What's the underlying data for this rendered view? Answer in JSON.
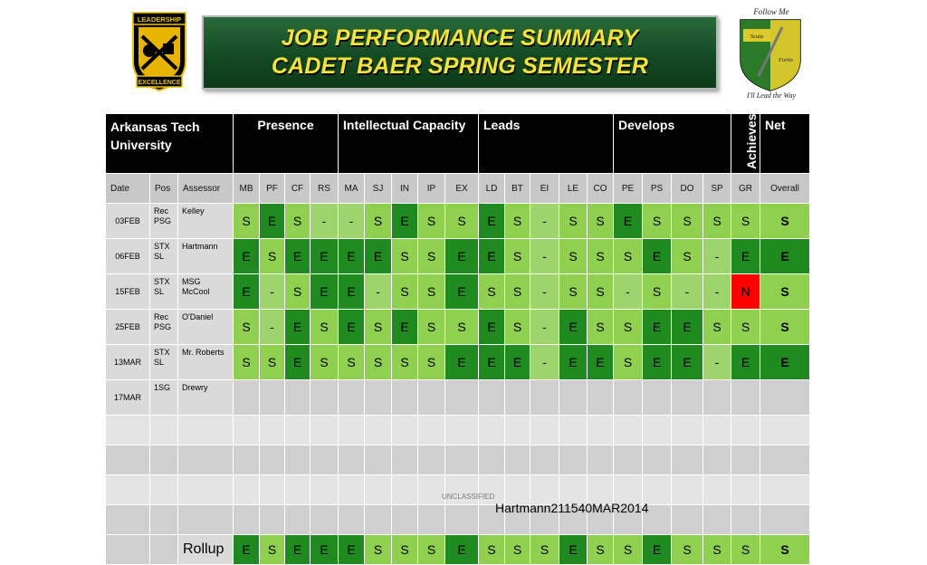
{
  "banner": {
    "line1": "JOB PERFORMANCE SUMMARY",
    "line2": "CADET BAER SPRING SEMESTER"
  },
  "logo_left": {
    "top": "LEADERSHIP",
    "bottom": "EXCELLENCE"
  },
  "logo_right": {
    "top": "Follow Me",
    "left": "Scuta",
    "right": "Fortis",
    "bottom": "I'll Lead the Way"
  },
  "header": {
    "university": "Arkansas Tech University",
    "presence": "Presence",
    "intellect": "Intellectual Capacity",
    "leads": "Leads",
    "develops": "Develops",
    "achieves": "Achieves",
    "net": "Net"
  },
  "columns": [
    "Date",
    "Pos",
    "Assessor",
    "MB",
    "PF",
    "CF",
    "RS",
    "MA",
    "SJ",
    "IN",
    "IP",
    "EX",
    "LD",
    "BT",
    "EI",
    "LE",
    "CO",
    "PE",
    "PS",
    "DO",
    "SP",
    "GR",
    "Overall"
  ],
  "rows": [
    {
      "date": "03FEB",
      "pos": "Rec PSG",
      "assessor": "Kelley",
      "grades": [
        "S",
        "E",
        "S",
        "-",
        "-",
        "S",
        "E",
        "S",
        "S",
        "E",
        "S",
        "-",
        "S",
        "S",
        "E",
        "S",
        "S",
        "S",
        "S"
      ],
      "net": "S"
    },
    {
      "date": "06FEB",
      "pos": "STX SL",
      "assessor": "Hartmann",
      "grades": [
        "E",
        "S",
        "E",
        "E",
        "E",
        "E",
        "S",
        "S",
        "E",
        "E",
        "S",
        "-",
        "S",
        "S",
        "S",
        "E",
        "S",
        "-",
        "E"
      ],
      "net": "E"
    },
    {
      "date": "15FEB",
      "pos": "STX SL",
      "assessor": "MSG McCool",
      "grades": [
        "E",
        "-",
        "S",
        "E",
        "E",
        "-",
        "S",
        "S",
        "E",
        "S",
        "S",
        "-",
        "S",
        "S",
        "-",
        "S",
        "-",
        "-",
        "N"
      ],
      "net": "S"
    },
    {
      "date": "25FEB",
      "pos": "Rec PSG",
      "assessor": "O'Daniel",
      "grades": [
        "S",
        "-",
        "E",
        "S",
        "E",
        "S",
        "E",
        "S",
        "S",
        "E",
        "S",
        "-",
        "E",
        "S",
        "S",
        "E",
        "E",
        "S",
        "S"
      ],
      "net": "S"
    },
    {
      "date": "13MAR",
      "pos": "STX SL",
      "assessor": "Mr. Roberts",
      "grades": [
        "S",
        "S",
        "E",
        "S",
        "S",
        "S",
        "S",
        "S",
        "E",
        "E",
        "E",
        "-",
        "E",
        "E",
        "S",
        "E",
        "E",
        "-",
        "E"
      ],
      "net": "E"
    },
    {
      "date": "17MAR",
      "pos": "1SG",
      "assessor": "Drewry",
      "grades": [],
      "net": ""
    }
  ],
  "rollup": {
    "label": "Rollup",
    "grades": [
      "E",
      "S",
      "E",
      "E",
      "E",
      "S",
      "S",
      "S",
      "E",
      "S",
      "S",
      "S",
      "E",
      "S",
      "S",
      "E",
      "S",
      "S",
      "S"
    ],
    "net": "S"
  },
  "footer": {
    "classification": "UNCLASSIFIED",
    "stamp": "Hartmann211540MAR2014"
  },
  "colors": {
    "S": "#90d050",
    "E": "#1f8a1f",
    "N": "#ff0000",
    "header": "#000000",
    "banner_text": "#f5e23a"
  }
}
